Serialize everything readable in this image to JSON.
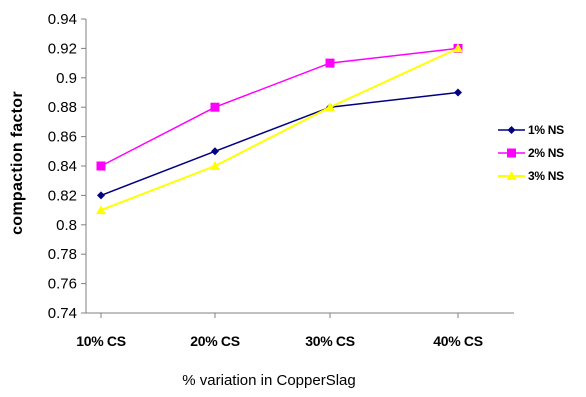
{
  "chart_data": {
    "type": "line",
    "title": "",
    "xlabel": "% variation in CopperSlag",
    "ylabel": "compaction factor",
    "categories": [
      "10% CS",
      "20% CS",
      "30% CS",
      "40% CS"
    ],
    "ylim": [
      0.74,
      0.94
    ],
    "yticks": [
      0.74,
      0.76,
      0.78,
      0.8,
      0.82,
      0.84,
      0.86,
      0.88,
      0.9,
      0.92,
      0.94
    ],
    "ytick_labels": [
      "0.74",
      "0.76",
      "0.78",
      "0.8",
      "0.82",
      "0.84",
      "0.86",
      "0.88",
      "0.9",
      "0.92",
      "0.94"
    ],
    "grid": false,
    "legend_position": "right",
    "series": [
      {
        "name": "1% NS",
        "values": [
          0.82,
          0.85,
          0.88,
          0.89
        ],
        "color": "#000080",
        "marker": "diamond"
      },
      {
        "name": "2% NS",
        "values": [
          0.84,
          0.88,
          0.91,
          0.92
        ],
        "color": "#ff00ff",
        "marker": "square"
      },
      {
        "name": "3% NS",
        "values": [
          0.81,
          0.84,
          0.88,
          0.92
        ],
        "color": "#ffff00",
        "marker": "triangle"
      }
    ]
  }
}
